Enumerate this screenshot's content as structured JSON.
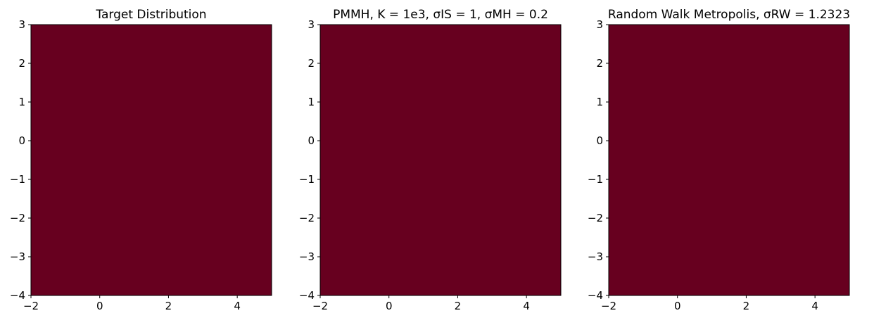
{
  "chart_data": [
    {
      "type": "heatmap",
      "title": "Target Distribution",
      "xlim": [
        -2,
        5
      ],
      "ylim": [
        -4,
        3
      ],
      "xticks": [
        {
          "value": -2,
          "label": "−2"
        },
        0,
        2,
        4
      ],
      "yticks": [
        {
          "value": -4,
          "label": "−4"
        },
        {
          "value": -3,
          "label": "−3"
        },
        {
          "value": -2,
          "label": "−2"
        },
        {
          "value": -1,
          "label": "−1"
        },
        0,
        1,
        2,
        3
      ]
    },
    {
      "type": "histogram2d",
      "title": "PMMH, K = 1e3, σIS = 1, σMH = 0.2",
      "xlim": [
        -2,
        5
      ],
      "ylim": [
        -4,
        3
      ],
      "xticks": [
        {
          "value": -2,
          "label": "−2"
        },
        0,
        2,
        4
      ],
      "yticks": [
        {
          "value": -4,
          "label": "−4"
        },
        {
          "value": -3,
          "label": "−3"
        },
        {
          "value": -2,
          "label": "−2"
        },
        {
          "value": -1,
          "label": "−1"
        },
        0,
        1,
        2,
        3
      ]
    },
    {
      "type": "histogram2d",
      "title": "Random Walk Metropolis, σRW = 1.2323",
      "xlim": [
        -2,
        5
      ],
      "ylim": [
        -4,
        3
      ],
      "xticks": [
        {
          "value": -2,
          "label": "−2"
        },
        0,
        2,
        4
      ],
      "yticks": [
        {
          "value": -4,
          "label": "−4"
        },
        {
          "value": -3,
          "label": "−3"
        },
        {
          "value": -2,
          "label": "−2"
        },
        {
          "value": -1,
          "label": "−1"
        },
        0,
        1,
        2,
        3
      ]
    }
  ]
}
